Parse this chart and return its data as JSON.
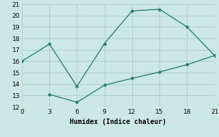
{
  "xlabel": "Humidex (Indice chaleur)",
  "bg_color": "#cce8e4",
  "grid_color": "#b0d0cc",
  "line_color": "#2e7d72",
  "series1_x": [
    0,
    3,
    6,
    9,
    12,
    15,
    18,
    21
  ],
  "series1_y": [
    16.0,
    17.5,
    13.8,
    17.55,
    20.4,
    20.55,
    19.0,
    16.5
  ],
  "series2_x": [
    3,
    6,
    9,
    12,
    15,
    18,
    21
  ],
  "series2_y": [
    13.1,
    12.4,
    13.9,
    14.5,
    15.05,
    15.7,
    16.5
  ],
  "xlim": [
    0,
    21
  ],
  "ylim": [
    12,
    21
  ],
  "xticks": [
    0,
    3,
    6,
    9,
    12,
    15,
    18,
    21
  ],
  "yticks": [
    12,
    13,
    14,
    15,
    16,
    17,
    18,
    19,
    20,
    21
  ],
  "marker": "D",
  "markersize": 2.5,
  "linewidth": 1.0,
  "label_fontsize": 7,
  "tick_fontsize": 6.5
}
